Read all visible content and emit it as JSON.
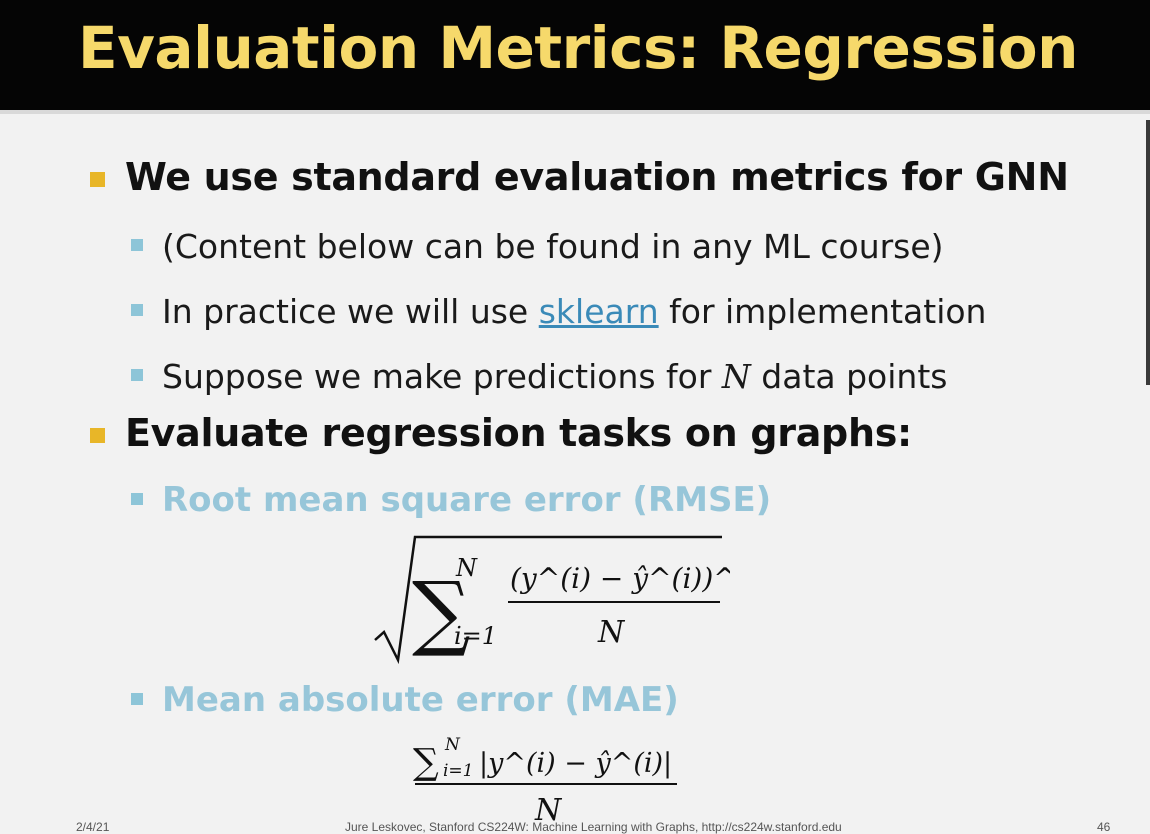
{
  "title": "Evaluation Metrics: Regression",
  "bullets": {
    "b1": "We use standard evaluation metrics for GNN",
    "b1_sub1": "(Content below can be found in any ML course)",
    "b1_sub2_pre": "In practice we will use ",
    "b1_sub2_link": "sklearn",
    "b1_sub2_post": " for implementation",
    "b1_sub3_pre": "Suppose we make predictions for ",
    "b1_sub3_var": "N",
    "b1_sub3_post": " data points",
    "b2": "Evaluate regression tasks on graphs:"
  },
  "metrics": {
    "rmse_label": "Root mean square error (RMSE)",
    "mae_label": "Mean absolute error (MAE)"
  },
  "formulas": {
    "upper": "N",
    "lower": "i=1",
    "denominator": "N",
    "rmse_numerator": "(y^(i) − ŷ^(i))^2",
    "mae_numerator": "|y^(i) − ŷ^(i)|"
  },
  "footer": {
    "date": "2/4/21",
    "credit": "Jure Leskovec, Stanford CS224W: Machine Learning with Graphs, http://cs224w.stanford.edu",
    "page": "46"
  },
  "colors": {
    "title_bg": "#050505",
    "title_text": "#f6d96b",
    "bullet": "#e8b628",
    "sub_bullet": "#8dc5d8",
    "metric_text": "#97c6d9",
    "link": "#3a8ab8"
  }
}
